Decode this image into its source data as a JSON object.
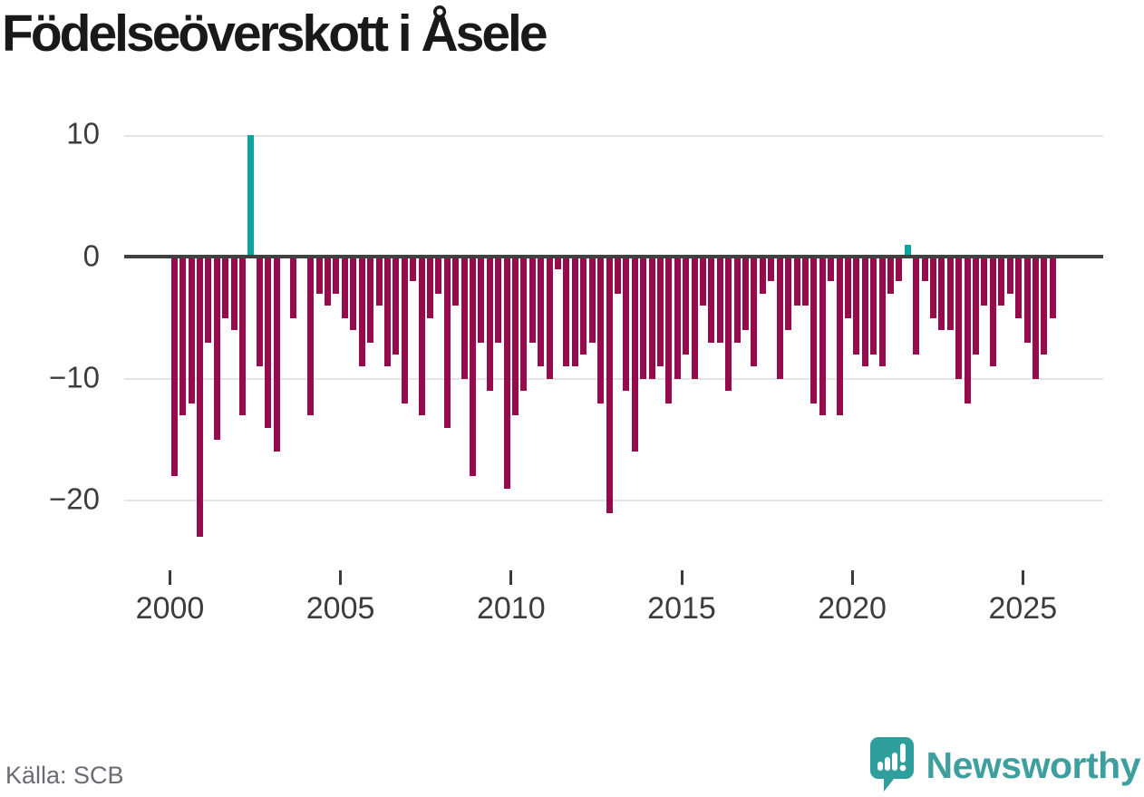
{
  "title": "Födelseöverskott i Åsele",
  "source_label": "Källa: SCB",
  "brand": {
    "name": "Newsworthy",
    "logo_icon": "bar-chart-speech-bubble-icon",
    "text_color": "#3f9f9f",
    "mark_color": "#2e9f9d"
  },
  "colors": {
    "negative_bar": "#970b4d",
    "positive_bar": "#0aa5a0",
    "zero_line": "#404040",
    "gridline": "#e4e4e4",
    "axis_text": "#3c3c3c"
  },
  "chart_data": {
    "type": "bar",
    "title": "Födelseöverskott i Åsele",
    "xlabel": "",
    "ylabel": "",
    "frequency": "quarterly",
    "x_range": [
      "2000 Q1",
      "2025 Q4"
    ],
    "ylim": [
      -23,
      10
    ],
    "grid": "horizontal",
    "legend": "none",
    "y_ticks": [
      {
        "label": "10",
        "value": 10
      },
      {
        "label": "0",
        "value": 0
      },
      {
        "label": "−10",
        "value": -10
      },
      {
        "label": "−20",
        "value": -20
      }
    ],
    "x_tick_labels": [
      "2000",
      "2005",
      "2010",
      "2015",
      "2020",
      "2025"
    ],
    "series": [
      {
        "name": "Födelseöverskott (kvartal)",
        "values_by_year": [
          {
            "year": 2000,
            "q": [
              -18,
              -13,
              -12,
              -23
            ]
          },
          {
            "year": 2001,
            "q": [
              -7,
              -15,
              -5,
              -6
            ]
          },
          {
            "year": 2002,
            "q": [
              -13,
              10,
              -9,
              -14
            ]
          },
          {
            "year": 2003,
            "q": [
              -16,
              0,
              -5,
              0
            ]
          },
          {
            "year": 2004,
            "q": [
              -13,
              -3,
              -4,
              -3
            ]
          },
          {
            "year": 2005,
            "q": [
              -5,
              -6,
              -9,
              -7
            ]
          },
          {
            "year": 2006,
            "q": [
              -4,
              -9,
              -8,
              -12
            ]
          },
          {
            "year": 2007,
            "q": [
              -2,
              -13,
              -5,
              -3
            ]
          },
          {
            "year": 2008,
            "q": [
              -14,
              -4,
              -10,
              -18
            ]
          },
          {
            "year": 2009,
            "q": [
              -7,
              -11,
              -7,
              -19
            ]
          },
          {
            "year": 2010,
            "q": [
              -13,
              -11,
              -7,
              -9
            ]
          },
          {
            "year": 2011,
            "q": [
              -10,
              -1,
              -9,
              -9
            ]
          },
          {
            "year": 2012,
            "q": [
              -8,
              -7,
              -12,
              -21
            ]
          },
          {
            "year": 2013,
            "q": [
              -3,
              -11,
              -16,
              -10
            ]
          },
          {
            "year": 2014,
            "q": [
              -10,
              -9,
              -12,
              -10
            ]
          },
          {
            "year": 2015,
            "q": [
              -8,
              -10,
              -4,
              -7
            ]
          },
          {
            "year": 2016,
            "q": [
              -7,
              -11,
              -7,
              -6
            ]
          },
          {
            "year": 2017,
            "q": [
              -9,
              -3,
              -2,
              -10
            ]
          },
          {
            "year": 2018,
            "q": [
              -6,
              -4,
              -4,
              -12
            ]
          },
          {
            "year": 2019,
            "q": [
              -13,
              -2,
              -13,
              -5
            ]
          },
          {
            "year": 2020,
            "q": [
              -8,
              -9,
              -8,
              -9
            ]
          },
          {
            "year": 2021,
            "q": [
              -3,
              -2,
              1,
              -8
            ]
          },
          {
            "year": 2022,
            "q": [
              -2,
              -5,
              -6,
              -6
            ]
          },
          {
            "year": 2023,
            "q": [
              -10,
              -12,
              -8,
              -4
            ]
          },
          {
            "year": 2024,
            "q": [
              -9,
              -4,
              -3,
              -5
            ]
          },
          {
            "year": 2025,
            "q": [
              -7,
              -10,
              -8,
              -5
            ]
          }
        ]
      }
    ]
  }
}
